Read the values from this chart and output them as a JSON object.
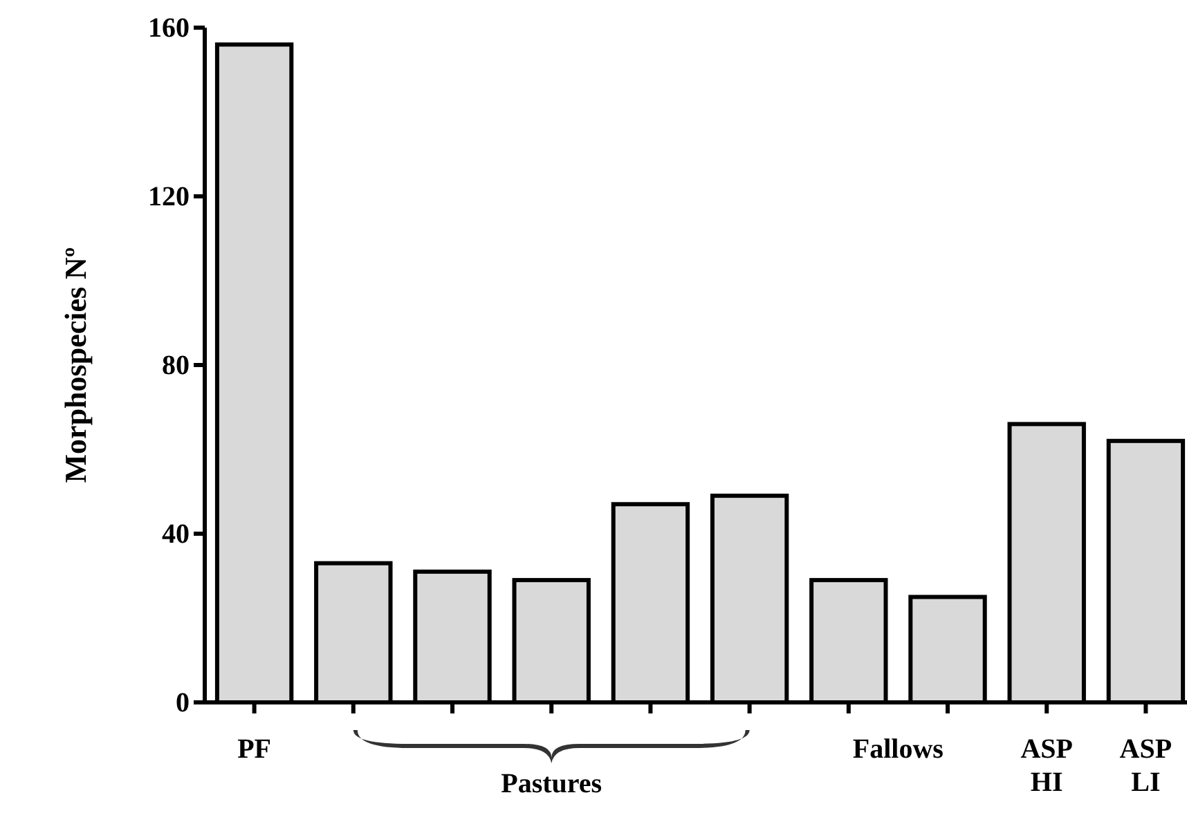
{
  "chart_data": {
    "type": "bar",
    "ylabel": "Morphospecies Nº",
    "categories": [
      "PF",
      null,
      null,
      null,
      null,
      null,
      null,
      null,
      "ASP HI",
      "ASP LI"
    ],
    "values": [
      156,
      33,
      31,
      29,
      47,
      49,
      29,
      25,
      66,
      62
    ],
    "color": "#d9d9d9",
    "ylim": [
      0,
      160
    ],
    "yticks": [
      0,
      40,
      80,
      120,
      160
    ],
    "annotations": [
      "Pastures",
      "Fallows"
    ]
  }
}
